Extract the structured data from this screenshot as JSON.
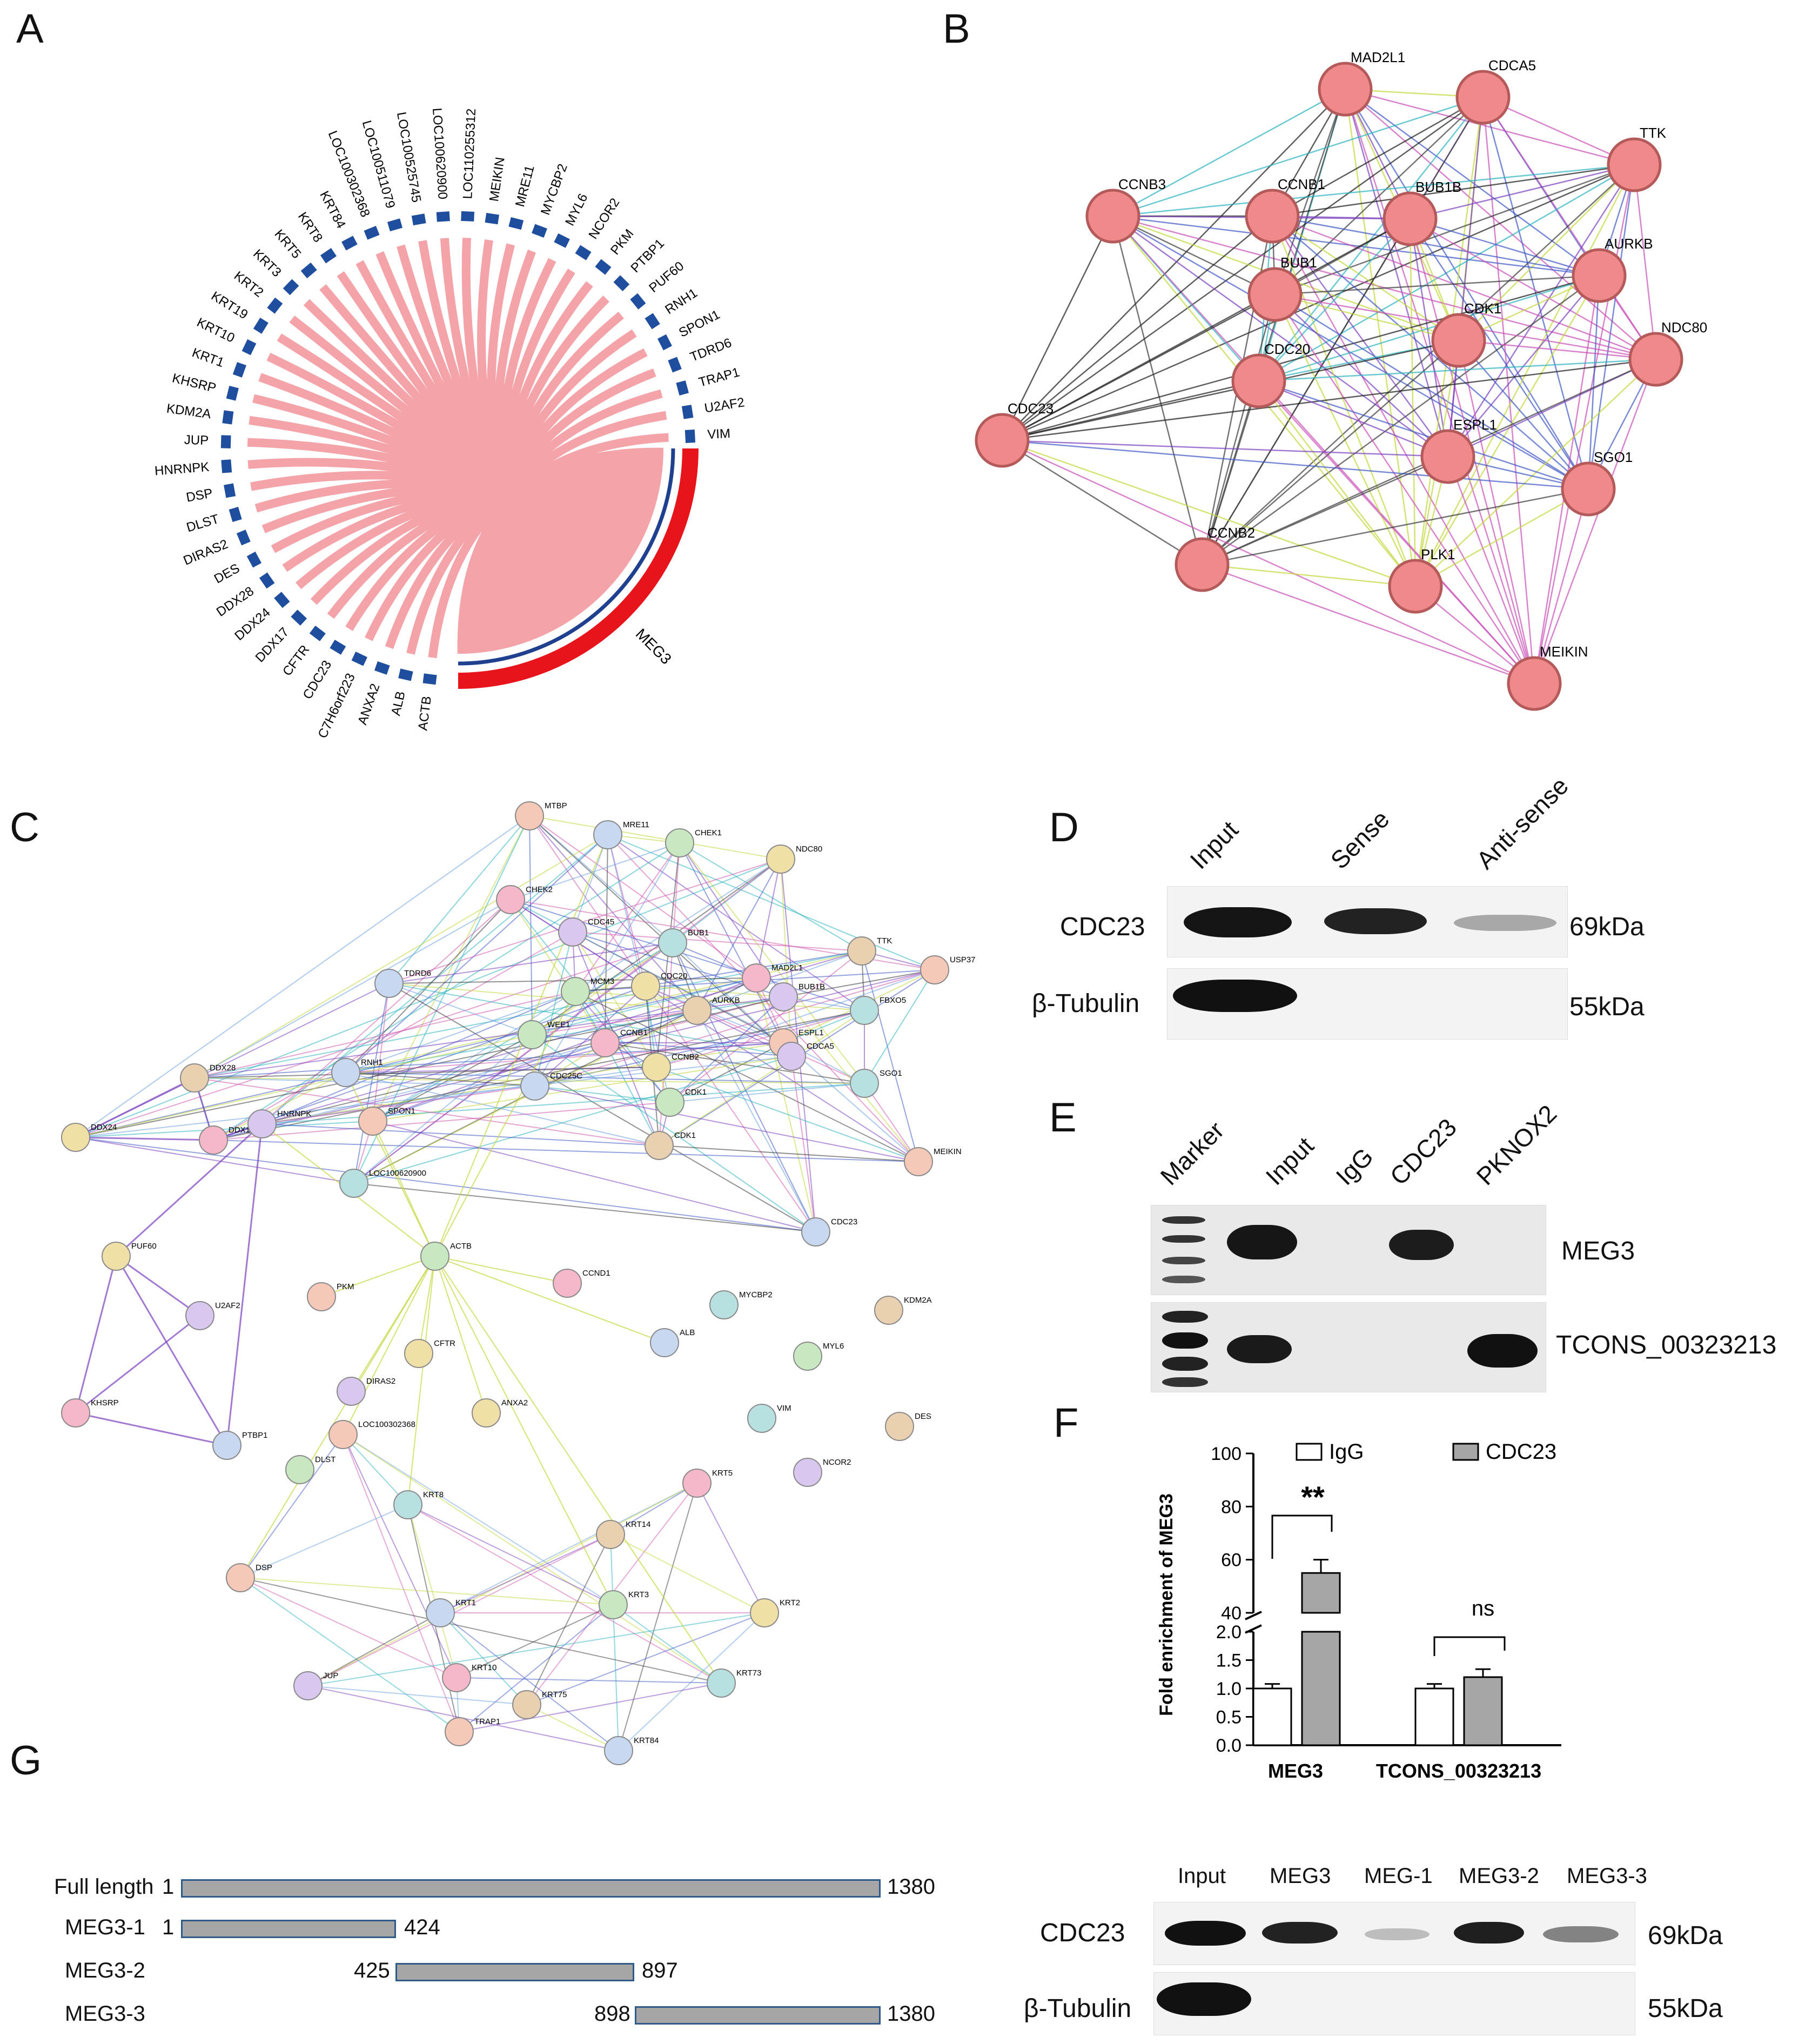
{
  "panels": {
    "A": "A",
    "B": "B",
    "C": "C",
    "D": "D",
    "E": "E",
    "F": "F",
    "G": "G"
  },
  "panelA": {
    "hub": "MEG3",
    "genes": [
      "ACTB",
      "ALB",
      "ANXA2",
      "C7H6orf223",
      "CDC23",
      "CFTR",
      "DDX17",
      "DDX24",
      "DDX28",
      "DES",
      "DIRAS2",
      "DLST",
      "DSP",
      "HNRNPK",
      "JUP",
      "KDM2A",
      "KHSRP",
      "KRT1",
      "KRT10",
      "KRT19",
      "KRT2",
      "KRT3",
      "KRT5",
      "KRT8",
      "KRT84",
      "LOC100302368",
      "LOC100511079",
      "LOC100525745",
      "LOC100620900",
      "LOC110255312",
      "MEIKIN",
      "MRE11",
      "MYCBP2",
      "MYL6",
      "NCOR2",
      "PKM",
      "PTBP1",
      "PUF60",
      "RNH1",
      "SPON1",
      "TDRD6",
      "TRAP1",
      "U2AF2",
      "VIM"
    ],
    "colors": {
      "ribbon": "#f4a3a8",
      "gene": "#1f4e9e",
      "hub_outer": "#e8141c",
      "hub_inner": "#1f3f8f"
    }
  },
  "panelB": {
    "nodes": [
      "MAD2L1",
      "CDCA5",
      "TTK",
      "CCNB3",
      "CCNB1",
      "BUB1B",
      "AURKB",
      "BUB1",
      "CDK1",
      "NDC80",
      "CDC20",
      "CDC23",
      "ESPL1",
      "SGO1",
      "CCNB2",
      "PLK1",
      "MEIKIN"
    ],
    "node_color": "#f08a8a"
  },
  "panelC": {
    "nodes": [
      "MTBP",
      "MRE11",
      "CHEK1",
      "NDC80",
      "CHEK2",
      "CDC45",
      "BUB1",
      "TTK",
      "USP37",
      "TDRD6",
      "MCM3",
      "CDC20",
      "MAD2L1",
      "BUB1B",
      "FBXO5",
      "AURKB",
      "ESPL1",
      "RNH1",
      "WEE1",
      "CCNB2",
      "CCNB1",
      "CDCA5",
      "SGO1",
      "DDX28",
      "SPON1",
      "CDC25C",
      "CDK1",
      "DDX24",
      "DDX17",
      "HNRNPK",
      "LOC100620900",
      "CDK1",
      "MEIKIN",
      "CDC23",
      "ACTB",
      "PUF60",
      "CCND1",
      "U2AF2",
      "MYCBP2",
      "KDM2A",
      "PKM",
      "ALB",
      "MYL6",
      "CFTR",
      "KHSRP",
      "DIRAS2",
      "VIM",
      "DES",
      "LOC100302368",
      "PTBP1",
      "DLST",
      "ANXA2",
      "KRT5",
      "NCOR2",
      "KRT8",
      "KRT14",
      "DSP",
      "KRT1",
      "KRT3",
      "KRT2",
      "KRT10",
      "JUP",
      "KRT73",
      "KRT75",
      "TRAP1",
      "KRT84"
    ]
  },
  "panelD": {
    "lanes": [
      "Input",
      "Sense",
      "Anti-sense"
    ],
    "rows": [
      {
        "label": "CDC23",
        "size": "69kDa"
      },
      {
        "label": "β-Tubulin",
        "size": "55kDa"
      }
    ]
  },
  "panelE": {
    "lanes": [
      "Marker",
      "Input",
      "IgG",
      "CDC23",
      "PKNOX2"
    ],
    "rows": [
      "MEG3",
      "TCONS_00323213"
    ]
  },
  "chart_data": {
    "type": "bar",
    "ylabel": "Fold enrichment of MEG3",
    "categories": [
      "MEG3",
      "TCONS_00323213"
    ],
    "series": [
      {
        "name": "IgG",
        "values": [
          1.0,
          1.0
        ],
        "errors": [
          0.08,
          0.08
        ],
        "color": "#ffffff"
      },
      {
        "name": "CDC23",
        "values": [
          55,
          1.2
        ],
        "errors": [
          5,
          0.14
        ],
        "color": "#a6a6a6"
      }
    ],
    "yaxis_broken": true,
    "ticks_lower": [
      "0.0",
      "0.5",
      "1.0",
      "1.5",
      "2.0"
    ],
    "ticks_upper": [
      "40",
      "60",
      "80",
      "100"
    ],
    "annotations": [
      "**",
      "ns"
    ],
    "legend": "top"
  },
  "panelG": {
    "constructs": [
      {
        "name": "Full length",
        "start": "1",
        "end": "1380"
      },
      {
        "name": "MEG3-1",
        "start": "1",
        "end": "424"
      },
      {
        "name": "MEG3-2",
        "start": "425",
        "end": "897"
      },
      {
        "name": "MEG3-3",
        "start": "898",
        "end": "1380"
      }
    ],
    "blot_lanes": [
      "Input",
      "MEG3",
      "MEG-1",
      "MEG3-2",
      "MEG3-3"
    ],
    "blot_rows": [
      {
        "label": "CDC23",
        "size": "69kDa"
      },
      {
        "label": "β-Tubulin",
        "size": "55kDa"
      }
    ]
  }
}
